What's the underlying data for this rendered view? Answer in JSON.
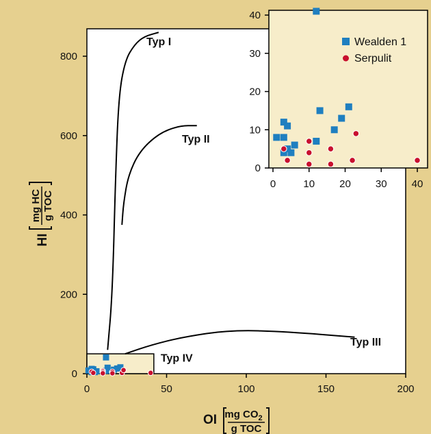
{
  "colors": {
    "background": "#e6d08f",
    "plot_area": "#ffffff",
    "inset_area": "#f7edca",
    "wealden": "#1f7fc0",
    "serpulit": "#c8102e"
  },
  "chart_data": [
    {
      "type": "scatter",
      "role": "main",
      "xlabel": {
        "main": "OI",
        "num": "mg CO",
        "num_sub": "2",
        "den": "g TOC"
      },
      "ylabel": {
        "main": "HI",
        "num": "mg HC",
        "den": "g TOC"
      },
      "xlim": [
        0,
        200
      ],
      "ylim": [
        0,
        870
      ],
      "x_ticks": [
        0,
        50,
        100,
        150,
        200
      ],
      "y_ticks": [
        0,
        200,
        400,
        600,
        800
      ],
      "grid": false,
      "curves": [
        {
          "label": "Typ I",
          "points": [
            [
              13,
              60
            ],
            [
              16,
              200
            ],
            [
              18,
              500
            ],
            [
              20,
              700
            ],
            [
              24,
              790
            ],
            [
              30,
              830
            ],
            [
              36,
              850
            ],
            [
              45,
              860
            ]
          ]
        },
        {
          "label": "Typ II",
          "points": [
            [
              22,
              375
            ],
            [
              23,
              430
            ],
            [
              26,
              500
            ],
            [
              33,
              560
            ],
            [
              45,
              605
            ],
            [
              58,
              625
            ],
            [
              69,
              625
            ]
          ]
        },
        {
          "label": "Typ III",
          "points": [
            [
              24,
              50
            ],
            [
              40,
              72
            ],
            [
              60,
              92
            ],
            [
              90,
              110
            ],
            [
              125,
              106
            ],
            [
              168,
              92
            ]
          ]
        }
      ],
      "box": {
        "label": "Typ IV",
        "x0": 0,
        "x1": 42,
        "y0": 0,
        "y1": 50
      },
      "series": [
        {
          "name": "Wealden 1",
          "marker": "square",
          "points": [
            [
              1,
              8
            ],
            [
              3,
              4
            ],
            [
              3,
              12
            ],
            [
              3,
              8
            ],
            [
              4,
              11
            ],
            [
              4,
              5
            ],
            [
              5,
              4
            ],
            [
              6,
              6
            ],
            [
              12,
              7
            ],
            [
              12,
              41
            ],
            [
              13,
              15
            ],
            [
              17,
              10
            ],
            [
              19,
              13
            ],
            [
              21,
              16
            ]
          ]
        },
        {
          "name": "Serpulit",
          "marker": "circle",
          "points": [
            [
              3,
              5
            ],
            [
              4,
              2
            ],
            [
              10,
              7
            ],
            [
              10,
              4
            ],
            [
              10,
              1
            ],
            [
              16,
              5
            ],
            [
              16,
              1
            ],
            [
              22,
              2
            ],
            [
              23,
              9
            ],
            [
              40,
              2
            ]
          ]
        }
      ]
    },
    {
      "type": "scatter",
      "role": "inset",
      "xlim": [
        0,
        40
      ],
      "ylim": [
        0,
        41
      ],
      "x_ticks": [
        0,
        10,
        20,
        30,
        40
      ],
      "y_ticks": [
        0,
        10,
        20,
        30,
        40
      ],
      "legend_position": "top-right",
      "legend": [
        "Wealden 1",
        "Serpulit"
      ],
      "series": [
        {
          "name": "Wealden 1",
          "marker": "square",
          "points": [
            [
              1,
              8
            ],
            [
              3,
              4
            ],
            [
              3,
              12
            ],
            [
              3,
              8
            ],
            [
              4,
              11
            ],
            [
              4,
              5
            ],
            [
              5,
              4
            ],
            [
              6,
              6
            ],
            [
              12,
              7
            ],
            [
              12,
              41
            ],
            [
              13,
              15
            ],
            [
              17,
              10
            ],
            [
              19,
              13
            ],
            [
              21,
              16
            ]
          ]
        },
        {
          "name": "Serpulit",
          "marker": "circle",
          "points": [
            [
              3,
              5
            ],
            [
              4,
              2
            ],
            [
              10,
              7
            ],
            [
              10,
              4
            ],
            [
              10,
              1
            ],
            [
              16,
              5
            ],
            [
              16,
              1
            ],
            [
              22,
              2
            ],
            [
              23,
              9
            ],
            [
              40,
              2
            ]
          ]
        }
      ]
    }
  ]
}
